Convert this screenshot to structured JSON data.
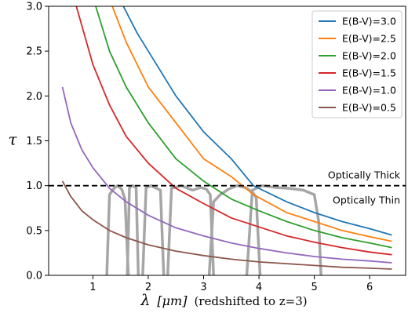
{
  "chart_data": {
    "type": "line",
    "xlabel": {
      "symbol": "λ",
      "unit": "[μm]",
      "note": "(redshifted to z=3)"
    },
    "ylabel": "τ",
    "xlim": [
      0.2,
      6.65
    ],
    "ylim": [
      0.0,
      3.0
    ],
    "x_ticks": [
      1,
      2,
      3,
      4,
      5,
      6
    ],
    "y_ticks": [
      0.0,
      0.5,
      1.0,
      1.5,
      2.0,
      2.5,
      3.0
    ],
    "x_tick_labels": [
      "1",
      "2",
      "3",
      "4",
      "5",
      "6"
    ],
    "y_tick_labels": [
      "0.0",
      "0.5",
      "1.0",
      "1.5",
      "2.0",
      "2.5",
      "3.0"
    ],
    "grid": false,
    "legend_position": "top-right",
    "series": [
      {
        "name": "E(B-V)=3.0",
        "color": "#1f77b4",
        "x": [
          1.55,
          1.8,
          2.0,
          2.5,
          3.0,
          3.5,
          3.9,
          4.5,
          5.0,
          5.5,
          6.0,
          6.4
        ],
        "y": [
          3.0,
          2.7,
          2.5,
          2.0,
          1.6,
          1.3,
          1.0,
          0.82,
          0.7,
          0.6,
          0.52,
          0.45
        ]
      },
      {
        "name": "E(B-V)=2.5",
        "color": "#ff7f0e",
        "x": [
          1.35,
          1.6,
          2.0,
          2.5,
          3.0,
          3.5,
          3.9,
          4.5,
          5.0,
          5.5,
          6.0,
          6.4
        ],
        "y": [
          3.0,
          2.6,
          2.1,
          1.7,
          1.3,
          1.1,
          0.9,
          0.7,
          0.6,
          0.5,
          0.43,
          0.38
        ]
      },
      {
        "name": "E(B-V)=2.0",
        "color": "#2ca02c",
        "x": [
          1.05,
          1.3,
          1.6,
          2.0,
          2.5,
          3.0,
          3.5,
          4.0,
          4.5,
          5.0,
          5.5,
          6.0,
          6.4
        ],
        "y": [
          3.0,
          2.5,
          2.1,
          1.7,
          1.3,
          1.05,
          0.85,
          0.72,
          0.6,
          0.5,
          0.42,
          0.36,
          0.31
        ]
      },
      {
        "name": "E(B-V)=1.5",
        "color": "#d62728",
        "x": [
          0.7,
          1.0,
          1.3,
          1.6,
          2.0,
          2.5,
          3.0,
          3.5,
          4.0,
          4.5,
          5.0,
          5.5,
          6.0,
          6.4
        ],
        "y": [
          3.0,
          2.35,
          1.9,
          1.55,
          1.25,
          0.97,
          0.8,
          0.64,
          0.54,
          0.44,
          0.37,
          0.31,
          0.26,
          0.23
        ]
      },
      {
        "name": "E(B-V)=1.0",
        "color": "#9467bd",
        "x": [
          0.45,
          0.6,
          0.8,
          1.0,
          1.3,
          1.6,
          2.0,
          2.5,
          3.0,
          3.5,
          4.0,
          4.5,
          5.0,
          5.5,
          6.0,
          6.4
        ],
        "y": [
          2.1,
          1.7,
          1.4,
          1.2,
          0.97,
          0.82,
          0.67,
          0.53,
          0.44,
          0.36,
          0.3,
          0.25,
          0.21,
          0.18,
          0.16,
          0.14
        ]
      },
      {
        "name": "E(B-V)=0.5",
        "color": "#8c564b",
        "x": [
          0.45,
          0.6,
          0.8,
          1.0,
          1.3,
          1.6,
          2.0,
          2.5,
          3.0,
          3.5,
          4.0,
          4.5,
          5.0,
          5.5,
          6.0,
          6.4
        ],
        "y": [
          1.05,
          0.88,
          0.72,
          0.62,
          0.5,
          0.42,
          0.34,
          0.27,
          0.22,
          0.18,
          0.15,
          0.13,
          0.11,
          0.09,
          0.08,
          0.07
        ]
      }
    ],
    "reference_line": {
      "y": 1.0,
      "style": "dashed",
      "color": "#000000",
      "label_above": "Optically Thick",
      "label_below": "Optically Thin"
    },
    "filter_curves": {
      "color": "#a6a6a6",
      "bands": [
        {
          "x": [
            1.25,
            1.3,
            1.38,
            1.45,
            1.52,
            1.58,
            1.64
          ],
          "y": [
            0.0,
            0.9,
            0.97,
            1.0,
            0.96,
            0.85,
            0.0
          ]
        },
        {
          "x": [
            1.62,
            1.66,
            1.72,
            1.78,
            1.82
          ],
          "y": [
            0.0,
            0.98,
            1.0,
            0.98,
            0.0
          ]
        },
        {
          "x": [
            1.9,
            1.96,
            2.05,
            2.15,
            2.22,
            2.28
          ],
          "y": [
            0.0,
            0.98,
            1.0,
            0.97,
            0.95,
            0.0
          ]
        },
        {
          "x": [
            2.35,
            2.42,
            2.6,
            2.8,
            2.95,
            3.05,
            3.12,
            3.18
          ],
          "y": [
            0.0,
            0.97,
            1.0,
            0.95,
            0.98,
            0.96,
            0.9,
            0.0
          ]
        },
        {
          "x": [
            3.1,
            3.18,
            3.3,
            3.45,
            3.6,
            3.75,
            3.88,
            3.95,
            4.02
          ],
          "y": [
            0.0,
            0.82,
            0.9,
            0.96,
            1.0,
            0.98,
            0.93,
            0.87,
            0.0
          ]
        },
        {
          "x": [
            3.78,
            3.88,
            4.05,
            4.3,
            4.55,
            4.8,
            5.0,
            5.08,
            5.12
          ],
          "y": [
            0.0,
            0.95,
            1.0,
            0.98,
            0.97,
            0.95,
            0.9,
            0.6,
            0.0
          ]
        }
      ]
    }
  }
}
